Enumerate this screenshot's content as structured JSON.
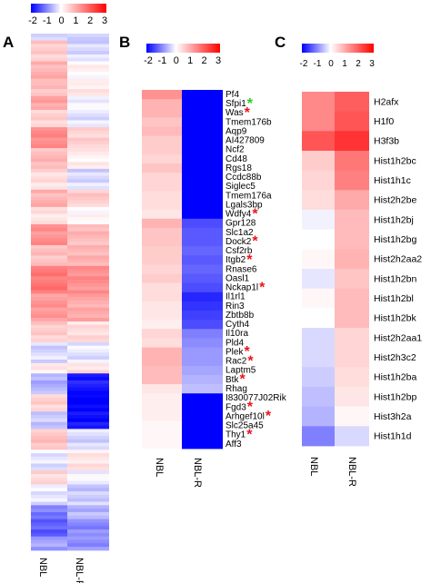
{
  "chart_data": [
    {
      "panel": "A",
      "type": "heatmap",
      "colorbar": {
        "ticks": [
          "-2",
          "-1",
          "0",
          "1",
          "2",
          "3"
        ],
        "range": [
          -2,
          3
        ],
        "low_color": "#0000ff",
        "mid_color": "#ffffff",
        "high_color": "#ff0000"
      },
      "columns": [
        "NBL",
        "NBL-R"
      ],
      "rows_approx": 150,
      "segments": [
        {
          "n": 2,
          "a": -0.2,
          "b": -0.5
        },
        {
          "n": 6,
          "a": 0.6,
          "b": -0.3
        },
        {
          "n": 6,
          "a": 0.9,
          "b": 0.1
        },
        {
          "n": 4,
          "a": 0.7,
          "b": 0.3
        },
        {
          "n": 4,
          "a": 1.1,
          "b": -0.1
        },
        {
          "n": 5,
          "a": 0.5,
          "b": -0.2
        },
        {
          "n": 6,
          "a": 1.4,
          "b": 0.5
        },
        {
          "n": 6,
          "a": 0.8,
          "b": 0.2
        },
        {
          "n": 6,
          "a": 0.4,
          "b": -0.3
        },
        {
          "n": 5,
          "a": 0.9,
          "b": 0.6
        },
        {
          "n": 5,
          "a": 0.3,
          "b": 0.1
        },
        {
          "n": 6,
          "a": 1.3,
          "b": 0.8
        },
        {
          "n": 6,
          "a": 0.7,
          "b": 0.9
        },
        {
          "n": 8,
          "a": 1.6,
          "b": 1.3
        },
        {
          "n": 8,
          "a": 1.2,
          "b": 1.0
        },
        {
          "n": 6,
          "a": 0.6,
          "b": 0.4
        },
        {
          "n": 6,
          "a": -0.3,
          "b": -0.2
        },
        {
          "n": 3,
          "a": 0.2,
          "b": 0.4
        },
        {
          "n": 6,
          "a": -0.6,
          "b": -1.8
        },
        {
          "n": 5,
          "a": 0.5,
          "b": -2.0
        },
        {
          "n": 5,
          "a": -0.4,
          "b": -1.9
        },
        {
          "n": 6,
          "a": 0.7,
          "b": -0.3
        },
        {
          "n": 6,
          "a": -0.2,
          "b": 0.3
        },
        {
          "n": 4,
          "a": 0.5,
          "b": -0.1
        },
        {
          "n": 6,
          "a": -0.2,
          "b": -0.4
        },
        {
          "n": 4,
          "a": -1.0,
          "b": -0.6
        },
        {
          "n": 5,
          "a": -1.3,
          "b": -0.9
        },
        {
          "n": 4,
          "a": -0.7,
          "b": -0.9
        }
      ]
    },
    {
      "panel": "B",
      "type": "heatmap",
      "colorbar": {
        "ticks": [
          "-2",
          "-1",
          "0",
          "1",
          "2",
          "3"
        ],
        "range": [
          -2,
          3
        ]
      },
      "columns": [
        "NBL",
        "NBL-R"
      ],
      "genes": [
        {
          "name": "Pf4",
          "values": [
            1.3,
            -2.0
          ]
        },
        {
          "name": "Sfpi1",
          "values": [
            0.9,
            -2.0
          ],
          "star": "green"
        },
        {
          "name": "Was",
          "values": [
            0.9,
            -2.0
          ],
          "star": "red"
        },
        {
          "name": "Tmem176b",
          "values": [
            0.7,
            -2.0
          ]
        },
        {
          "name": "Aqp9",
          "values": [
            0.8,
            -2.0
          ]
        },
        {
          "name": "AI427809",
          "values": [
            0.6,
            -2.0
          ]
        },
        {
          "name": "Ncf2",
          "values": [
            0.6,
            -2.0
          ]
        },
        {
          "name": "Cd48",
          "values": [
            0.5,
            -2.0
          ]
        },
        {
          "name": "Rgs18",
          "values": [
            0.7,
            -2.0
          ]
        },
        {
          "name": "Ccdc88b",
          "values": [
            0.5,
            -2.0
          ]
        },
        {
          "name": "Siglec5",
          "values": [
            0.5,
            -2.0
          ]
        },
        {
          "name": "Tmem176a",
          "values": [
            0.4,
            -2.0
          ]
        },
        {
          "name": "Lgals3bp",
          "values": [
            0.4,
            -2.0
          ]
        },
        {
          "name": "Wdfy4",
          "values": [
            0.3,
            -2.0
          ],
          "star": "red"
        },
        {
          "name": "Gpr128",
          "values": [
            0.9,
            -1.4
          ]
        },
        {
          "name": "Slc1a2",
          "values": [
            0.7,
            -1.3
          ]
        },
        {
          "name": "Dock2",
          "values": [
            0.7,
            -1.3
          ],
          "star": "red"
        },
        {
          "name": "Csf2rb",
          "values": [
            0.6,
            -1.2
          ]
        },
        {
          "name": "Itgb2",
          "values": [
            0.6,
            -1.3
          ],
          "star": "red"
        },
        {
          "name": "Rnase6",
          "values": [
            0.5,
            -1.2
          ]
        },
        {
          "name": "Oasl1",
          "values": [
            0.6,
            -1.3
          ]
        },
        {
          "name": "Nckap1l",
          "values": [
            0.4,
            -1.4
          ],
          "star": "red"
        },
        {
          "name": "Il1rl1",
          "values": [
            0.4,
            -1.7
          ]
        },
        {
          "name": "Rin3",
          "values": [
            0.3,
            -1.6
          ]
        },
        {
          "name": "Zbtb8b",
          "values": [
            0.3,
            -1.5
          ]
        },
        {
          "name": "Cyth4",
          "values": [
            0.2,
            -1.4
          ]
        },
        {
          "name": "Il10ra",
          "values": [
            0.5,
            -1.0
          ]
        },
        {
          "name": "Pld4",
          "values": [
            0.4,
            -0.9
          ]
        },
        {
          "name": "Plek",
          "values": [
            0.9,
            -0.8
          ],
          "star": "red"
        },
        {
          "name": "Rac2",
          "values": [
            0.9,
            -0.8
          ],
          "star": "red"
        },
        {
          "name": "Laptm5",
          "values": [
            0.8,
            -0.7
          ]
        },
        {
          "name": "Btk",
          "values": [
            0.8,
            -0.6
          ],
          "star": "red"
        },
        {
          "name": "Rhag",
          "values": [
            0.3,
            -0.5
          ]
        },
        {
          "name": "I830077J02Rik",
          "values": [
            0.2,
            -2.0
          ]
        },
        {
          "name": "Fgd3",
          "values": [
            0.2,
            -2.0
          ],
          "star": "red"
        },
        {
          "name": "Arhgef10l",
          "values": [
            0.2,
            -2.0
          ],
          "star": "red"
        },
        {
          "name": "Slc25a45",
          "values": [
            0.1,
            -2.0
          ]
        },
        {
          "name": "Thy1",
          "values": [
            0.1,
            -2.0
          ],
          "star": "red"
        },
        {
          "name": "Aff3",
          "values": [
            0.1,
            -2.0
          ]
        }
      ]
    },
    {
      "panel": "C",
      "type": "heatmap",
      "colorbar": {
        "ticks": [
          "-2",
          "-1",
          "0",
          "1",
          "2",
          "3"
        ],
        "range": [
          -2,
          3
        ]
      },
      "columns": [
        "NBL",
        "NBL-R"
      ],
      "genes": [
        {
          "name": "H2afx",
          "values": [
            1.4,
            1.9
          ]
        },
        {
          "name": "H1f0",
          "values": [
            1.4,
            2.0
          ]
        },
        {
          "name": "H3f3b",
          "values": [
            2.0,
            2.4
          ]
        },
        {
          "name": "Hist1h2bc",
          "values": [
            0.6,
            1.6
          ]
        },
        {
          "name": "Hist1h1c",
          "values": [
            0.5,
            1.5
          ]
        },
        {
          "name": "Hist2h2be",
          "values": [
            0.4,
            1.0
          ]
        },
        {
          "name": "Hist1h2bj",
          "values": [
            -0.1,
            0.8
          ]
        },
        {
          "name": "Hist1h2bg",
          "values": [
            0.0,
            0.8
          ]
        },
        {
          "name": "Hist2h2aa2",
          "values": [
            0.1,
            0.9
          ]
        },
        {
          "name": "Hist1h2bn",
          "values": [
            -0.2,
            0.7
          ]
        },
        {
          "name": "Hist1h2bl",
          "values": [
            0.1,
            0.8
          ]
        },
        {
          "name": "Hist1h2bk",
          "values": [
            0.0,
            0.8
          ]
        },
        {
          "name": "Hist2h2aa1",
          "values": [
            -0.3,
            0.5
          ]
        },
        {
          "name": "Hist2h3c2",
          "values": [
            -0.3,
            0.5
          ]
        },
        {
          "name": "Hist1h2ba",
          "values": [
            -0.4,
            0.4
          ]
        },
        {
          "name": "Hist1h2bp",
          "values": [
            -0.5,
            0.3
          ]
        },
        {
          "name": "Hist3h2a",
          "values": [
            -0.6,
            0.1
          ]
        },
        {
          "name": "Hist1h1d",
          "values": [
            -1.0,
            -0.3
          ]
        }
      ]
    }
  ],
  "panel_letters": [
    "A",
    "B",
    "C"
  ],
  "star_glyph": "*",
  "colors": {
    "low": "#0000ff",
    "mid": "#ffffff",
    "high": "#ff0000",
    "star_red": "#e8141c",
    "star_green": "#22cc22"
  }
}
